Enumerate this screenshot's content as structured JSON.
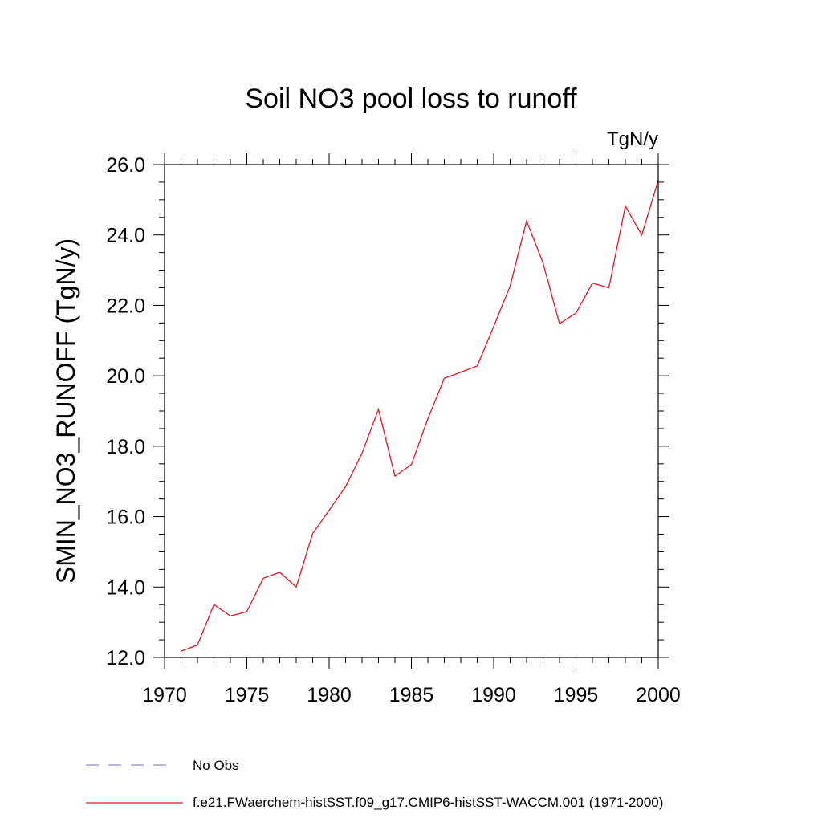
{
  "chart_data": {
    "type": "line",
    "title": "Soil NO3 pool loss to runoff",
    "units": "TgN/y",
    "ylabel": "SMIN_NO3_RUNOFF  (TgN/y)",
    "xlabel": "",
    "xlim": [
      1970,
      2000
    ],
    "ylim": [
      12.0,
      26.0
    ],
    "x_ticks": [
      "1970",
      "1975",
      "1980",
      "1985",
      "1990",
      "1995",
      "2000"
    ],
    "y_ticks": [
      "12.0",
      "14.0",
      "16.0",
      "18.0",
      "20.0",
      "22.0",
      "24.0",
      "26.0"
    ],
    "grid": false,
    "legend_position": "bottom",
    "legend": [
      {
        "label": "No Obs",
        "color": "#7a6fb0",
        "style": "dashed"
      },
      {
        "label": "f.e21.FWaerchem-histSST.f09_g17.CMIP6-histSST-WACCM.001 (1971-2000)",
        "color": "#e8141e",
        "style": "solid"
      }
    ],
    "series": [
      {
        "name": "f.e21.FWaerchem-histSST.f09_g17.CMIP6-histSST-WACCM.001 (1971-2000)",
        "color": "#e8141e",
        "x": [
          1971,
          1972,
          1973,
          1974,
          1975,
          1976,
          1977,
          1978,
          1979,
          1980,
          1981,
          1982,
          1983,
          1984,
          1985,
          1986,
          1987,
          1988,
          1989,
          1990,
          1991,
          1992,
          1993,
          1994,
          1995,
          1996,
          1997,
          1998,
          1999,
          2000
        ],
        "y": [
          12.18,
          12.35,
          13.5,
          13.18,
          13.3,
          14.25,
          14.42,
          14.0,
          15.52,
          16.18,
          16.85,
          17.8,
          19.05,
          17.15,
          17.48,
          18.78,
          19.93,
          20.1,
          20.28,
          21.4,
          22.55,
          24.4,
          23.2,
          21.48,
          21.78,
          22.63,
          22.5,
          24.82,
          24.0,
          25.55
        ]
      }
    ]
  }
}
